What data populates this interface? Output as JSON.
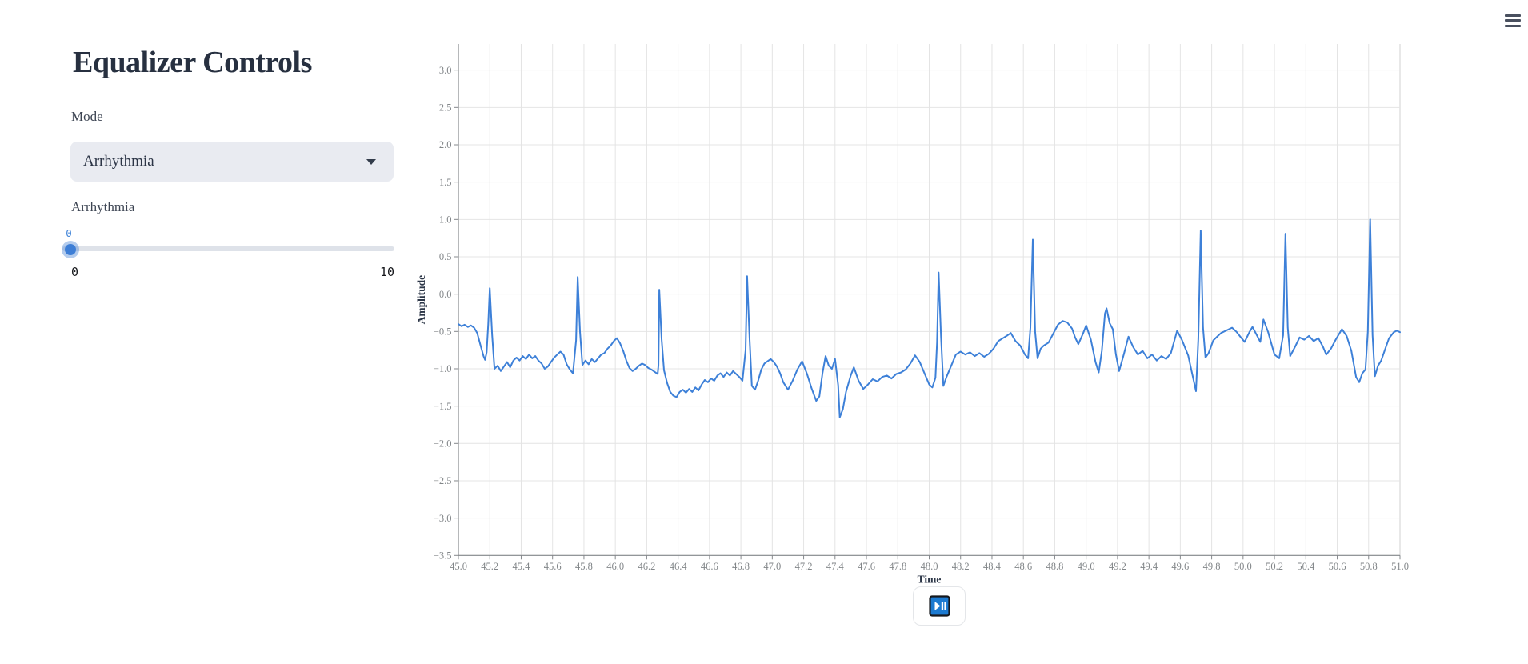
{
  "header": {
    "menu_icon": "hamburger-menu"
  },
  "controls": {
    "title": "Equalizer Controls",
    "mode": {
      "label": "Mode",
      "selected": "Arrhythmia"
    },
    "slider": {
      "label": "Arrhythmia",
      "value": "0",
      "min_label": "0",
      "max_label": "10"
    }
  },
  "player": {
    "icon": "play-pause"
  },
  "colors": {
    "accent_blue": "#3d7ed6",
    "slider_value_blue": "#4285d8",
    "title_text": "#273040",
    "grid": "#e4e4e4",
    "axis": "#85888c",
    "tick_label": "#828689",
    "icon_blue": "#1c7ad0"
  },
  "chart_data": {
    "type": "line",
    "title": "",
    "xlabel": "Time",
    "ylabel": "Amplitude",
    "xlim": [
      45,
      51
    ],
    "ylim": [
      -3.5,
      3.35
    ],
    "grid": true,
    "legend": "none",
    "line_color": "#3d80d8",
    "x_ticks": [
      45,
      45.2,
      45.4,
      45.6,
      45.8,
      46,
      46.2,
      46.4,
      46.6,
      46.8,
      47,
      47.2,
      47.4,
      47.6,
      47.8,
      48,
      48.2,
      48.4,
      48.6,
      48.8,
      49,
      49.2,
      49.4,
      49.6,
      49.8,
      50,
      50.2,
      50.4,
      50.6,
      50.8,
      51
    ],
    "x_tick_labels": [
      "45.0",
      "45.2",
      "45.4",
      "45.6",
      "45.8",
      "46.0",
      "46.2",
      "46.4",
      "46.6",
      "46.8",
      "47.0",
      "47.2",
      "47.4",
      "47.6",
      "47.8",
      "48.0",
      "48.2",
      "48.4",
      "48.6",
      "48.8",
      "49.0",
      "49.2",
      "49.4",
      "49.6",
      "49.8",
      "50.0",
      "50.2",
      "50.4",
      "50.6",
      "50.8",
      "51.0"
    ],
    "y_ticks": [
      3,
      2.5,
      2,
      1.5,
      1,
      0.5,
      0,
      -0.5,
      -1,
      -1.5,
      -2,
      -2.5,
      -3,
      -3.5
    ],
    "y_tick_labels": [
      "3.0",
      "2.5",
      "2.0",
      "1.5",
      "1.0",
      "0.5",
      "0.0",
      "−0.5",
      "−1.0",
      "−1.5",
      "−2.0",
      "−2.5",
      "−3.0",
      "−3.5"
    ],
    "series": [
      {
        "name": "Amplitude",
        "points": [
          [
            45.0,
            -0.4
          ],
          [
            45.02,
            -0.43
          ],
          [
            45.04,
            -0.41
          ],
          [
            45.06,
            -0.44
          ],
          [
            45.08,
            -0.42
          ],
          [
            45.1,
            -0.45
          ],
          [
            45.12,
            -0.52
          ],
          [
            45.14,
            -0.68
          ],
          [
            45.16,
            -0.83
          ],
          [
            45.17,
            -0.88
          ],
          [
            45.18,
            -0.78
          ],
          [
            45.19,
            -0.4
          ],
          [
            45.2,
            0.08
          ],
          [
            45.215,
            -0.55
          ],
          [
            45.23,
            -1.0
          ],
          [
            45.25,
            -0.96
          ],
          [
            45.27,
            -1.03
          ],
          [
            45.29,
            -0.97
          ],
          [
            45.31,
            -0.91
          ],
          [
            45.33,
            -0.98
          ],
          [
            45.35,
            -0.89
          ],
          [
            45.37,
            -0.85
          ],
          [
            45.39,
            -0.89
          ],
          [
            45.41,
            -0.83
          ],
          [
            45.43,
            -0.87
          ],
          [
            45.45,
            -0.81
          ],
          [
            45.47,
            -0.86
          ],
          [
            45.49,
            -0.83
          ],
          [
            45.51,
            -0.89
          ],
          [
            45.53,
            -0.93
          ],
          [
            45.55,
            -1.0
          ],
          [
            45.57,
            -0.97
          ],
          [
            45.59,
            -0.91
          ],
          [
            45.61,
            -0.85
          ],
          [
            45.63,
            -0.81
          ],
          [
            45.65,
            -0.77
          ],
          [
            45.67,
            -0.81
          ],
          [
            45.69,
            -0.94
          ],
          [
            45.71,
            -1.01
          ],
          [
            45.73,
            -1.06
          ],
          [
            45.75,
            -0.62
          ],
          [
            45.76,
            0.23
          ],
          [
            45.775,
            -0.5
          ],
          [
            45.79,
            -0.95
          ],
          [
            45.81,
            -0.89
          ],
          [
            45.83,
            -0.94
          ],
          [
            45.85,
            -0.87
          ],
          [
            45.87,
            -0.91
          ],
          [
            45.89,
            -0.86
          ],
          [
            45.91,
            -0.81
          ],
          [
            45.93,
            -0.79
          ],
          [
            45.95,
            -0.73
          ],
          [
            45.97,
            -0.69
          ],
          [
            45.99,
            -0.63
          ],
          [
            46.01,
            -0.59
          ],
          [
            46.03,
            -0.66
          ],
          [
            46.05,
            -0.76
          ],
          [
            46.07,
            -0.89
          ],
          [
            46.09,
            -0.99
          ],
          [
            46.11,
            -1.03
          ],
          [
            46.13,
            -1.0
          ],
          [
            46.15,
            -0.96
          ],
          [
            46.17,
            -0.93
          ],
          [
            46.19,
            -0.95
          ],
          [
            46.21,
            -0.99
          ],
          [
            46.23,
            -1.01
          ],
          [
            46.25,
            -1.04
          ],
          [
            46.27,
            -1.07
          ],
          [
            46.275,
            -0.95
          ],
          [
            46.28,
            0.06
          ],
          [
            46.295,
            -0.6
          ],
          [
            46.31,
            -1.02
          ],
          [
            46.33,
            -1.19
          ],
          [
            46.35,
            -1.31
          ],
          [
            46.37,
            -1.36
          ],
          [
            46.39,
            -1.38
          ],
          [
            46.41,
            -1.31
          ],
          [
            46.43,
            -1.28
          ],
          [
            46.45,
            -1.32
          ],
          [
            46.47,
            -1.27
          ],
          [
            46.49,
            -1.31
          ],
          [
            46.51,
            -1.25
          ],
          [
            46.53,
            -1.29
          ],
          [
            46.55,
            -1.21
          ],
          [
            46.57,
            -1.15
          ],
          [
            46.59,
            -1.18
          ],
          [
            46.61,
            -1.13
          ],
          [
            46.63,
            -1.16
          ],
          [
            46.65,
            -1.09
          ],
          [
            46.67,
            -1.06
          ],
          [
            46.69,
            -1.11
          ],
          [
            46.71,
            -1.05
          ],
          [
            46.73,
            -1.09
          ],
          [
            46.75,
            -1.03
          ],
          [
            46.77,
            -1.07
          ],
          [
            46.79,
            -1.11
          ],
          [
            46.81,
            -1.16
          ],
          [
            46.83,
            -0.75
          ],
          [
            46.84,
            0.24
          ],
          [
            46.855,
            -0.58
          ],
          [
            46.87,
            -1.23
          ],
          [
            46.89,
            -1.28
          ],
          [
            46.91,
            -1.16
          ],
          [
            46.93,
            -1.01
          ],
          [
            46.95,
            -0.93
          ],
          [
            46.97,
            -0.9
          ],
          [
            46.99,
            -0.87
          ],
          [
            47.01,
            -0.91
          ],
          [
            47.03,
            -0.97
          ],
          [
            47.05,
            -1.06
          ],
          [
            47.07,
            -1.18
          ],
          [
            47.1,
            -1.28
          ],
          [
            47.13,
            -1.16
          ],
          [
            47.16,
            -1.01
          ],
          [
            47.19,
            -0.9
          ],
          [
            47.22,
            -1.06
          ],
          [
            47.25,
            -1.26
          ],
          [
            47.28,
            -1.43
          ],
          [
            47.3,
            -1.37
          ],
          [
            47.32,
            -1.06
          ],
          [
            47.34,
            -0.83
          ],
          [
            47.36,
            -0.96
          ],
          [
            47.38,
            -1.0
          ],
          [
            47.4,
            -0.87
          ],
          [
            47.42,
            -1.22
          ],
          [
            47.43,
            -1.65
          ],
          [
            47.45,
            -1.54
          ],
          [
            47.47,
            -1.31
          ],
          [
            47.5,
            -1.09
          ],
          [
            47.52,
            -0.98
          ],
          [
            47.55,
            -1.16
          ],
          [
            47.58,
            -1.27
          ],
          [
            47.61,
            -1.21
          ],
          [
            47.64,
            -1.14
          ],
          [
            47.67,
            -1.17
          ],
          [
            47.7,
            -1.11
          ],
          [
            47.73,
            -1.09
          ],
          [
            47.76,
            -1.13
          ],
          [
            47.79,
            -1.07
          ],
          [
            47.82,
            -1.05
          ],
          [
            47.85,
            -1.01
          ],
          [
            47.88,
            -0.93
          ],
          [
            47.91,
            -0.82
          ],
          [
            47.94,
            -0.91
          ],
          [
            47.97,
            -1.06
          ],
          [
            48.0,
            -1.21
          ],
          [
            48.02,
            -1.25
          ],
          [
            48.04,
            -1.12
          ],
          [
            48.05,
            -0.65
          ],
          [
            48.06,
            0.29
          ],
          [
            48.075,
            -0.55
          ],
          [
            48.09,
            -1.23
          ],
          [
            48.11,
            -1.11
          ],
          [
            48.14,
            -0.96
          ],
          [
            48.17,
            -0.81
          ],
          [
            48.2,
            -0.77
          ],
          [
            48.23,
            -0.81
          ],
          [
            48.26,
            -0.78
          ],
          [
            48.29,
            -0.83
          ],
          [
            48.32,
            -0.79
          ],
          [
            48.35,
            -0.84
          ],
          [
            48.38,
            -0.8
          ],
          [
            48.41,
            -0.73
          ],
          [
            48.44,
            -0.63
          ],
          [
            48.47,
            -0.59
          ],
          [
            48.5,
            -0.55
          ],
          [
            48.52,
            -0.52
          ],
          [
            48.55,
            -0.63
          ],
          [
            48.58,
            -0.69
          ],
          [
            48.61,
            -0.81
          ],
          [
            48.63,
            -0.86
          ],
          [
            48.645,
            -0.45
          ],
          [
            48.66,
            0.73
          ],
          [
            48.675,
            -0.5
          ],
          [
            48.69,
            -0.86
          ],
          [
            48.71,
            -0.73
          ],
          [
            48.73,
            -0.69
          ],
          [
            48.76,
            -0.65
          ],
          [
            48.79,
            -0.53
          ],
          [
            48.82,
            -0.41
          ],
          [
            48.85,
            -0.36
          ],
          [
            48.88,
            -0.38
          ],
          [
            48.91,
            -0.46
          ],
          [
            48.93,
            -0.58
          ],
          [
            48.95,
            -0.67
          ],
          [
            48.98,
            -0.53
          ],
          [
            49.0,
            -0.42
          ],
          [
            49.03,
            -0.61
          ],
          [
            49.06,
            -0.91
          ],
          [
            49.08,
            -1.05
          ],
          [
            49.1,
            -0.76
          ],
          [
            49.12,
            -0.26
          ],
          [
            49.13,
            -0.19
          ],
          [
            49.15,
            -0.39
          ],
          [
            49.17,
            -0.47
          ],
          [
            49.19,
            -0.81
          ],
          [
            49.21,
            -1.03
          ],
          [
            49.24,
            -0.81
          ],
          [
            49.27,
            -0.57
          ],
          [
            49.3,
            -0.71
          ],
          [
            49.33,
            -0.81
          ],
          [
            49.36,
            -0.76
          ],
          [
            49.39,
            -0.86
          ],
          [
            49.42,
            -0.81
          ],
          [
            49.45,
            -0.89
          ],
          [
            49.48,
            -0.83
          ],
          [
            49.51,
            -0.87
          ],
          [
            49.54,
            -0.79
          ],
          [
            49.58,
            -0.49
          ],
          [
            49.61,
            -0.61
          ],
          [
            49.65,
            -0.82
          ],
          [
            49.68,
            -1.11
          ],
          [
            49.7,
            -1.3
          ],
          [
            49.715,
            -0.6
          ],
          [
            49.73,
            0.85
          ],
          [
            49.745,
            -0.45
          ],
          [
            49.76,
            -0.85
          ],
          [
            49.78,
            -0.79
          ],
          [
            49.81,
            -0.62
          ],
          [
            49.84,
            -0.56
          ],
          [
            49.86,
            -0.52
          ],
          [
            49.89,
            -0.49
          ],
          [
            49.93,
            -0.45
          ],
          [
            49.96,
            -0.51
          ],
          [
            49.99,
            -0.59
          ],
          [
            50.01,
            -0.64
          ],
          [
            50.04,
            -0.51
          ],
          [
            50.06,
            -0.44
          ],
          [
            50.09,
            -0.56
          ],
          [
            50.11,
            -0.64
          ],
          [
            50.13,
            -0.34
          ],
          [
            50.16,
            -0.51
          ],
          [
            50.18,
            -0.66
          ],
          [
            50.2,
            -0.81
          ],
          [
            50.23,
            -0.86
          ],
          [
            50.255,
            -0.55
          ],
          [
            50.27,
            0.81
          ],
          [
            50.285,
            -0.45
          ],
          [
            50.3,
            -0.83
          ],
          [
            50.33,
            -0.71
          ],
          [
            50.36,
            -0.58
          ],
          [
            50.39,
            -0.61
          ],
          [
            50.42,
            -0.56
          ],
          [
            50.45,
            -0.63
          ],
          [
            50.48,
            -0.59
          ],
          [
            50.51,
            -0.71
          ],
          [
            50.53,
            -0.81
          ],
          [
            50.56,
            -0.73
          ],
          [
            50.59,
            -0.61
          ],
          [
            50.63,
            -0.47
          ],
          [
            50.66,
            -0.56
          ],
          [
            50.69,
            -0.76
          ],
          [
            50.72,
            -1.11
          ],
          [
            50.74,
            -1.18
          ],
          [
            50.76,
            -1.06
          ],
          [
            50.78,
            -1.01
          ],
          [
            50.795,
            -0.5
          ],
          [
            50.81,
            1.0
          ],
          [
            50.825,
            -0.55
          ],
          [
            50.84,
            -1.1
          ],
          [
            50.86,
            -0.96
          ],
          [
            50.88,
            -0.89
          ],
          [
            50.91,
            -0.71
          ],
          [
            50.93,
            -0.59
          ],
          [
            50.96,
            -0.51
          ],
          [
            50.98,
            -0.49
          ],
          [
            51.0,
            -0.51
          ]
        ]
      }
    ]
  }
}
